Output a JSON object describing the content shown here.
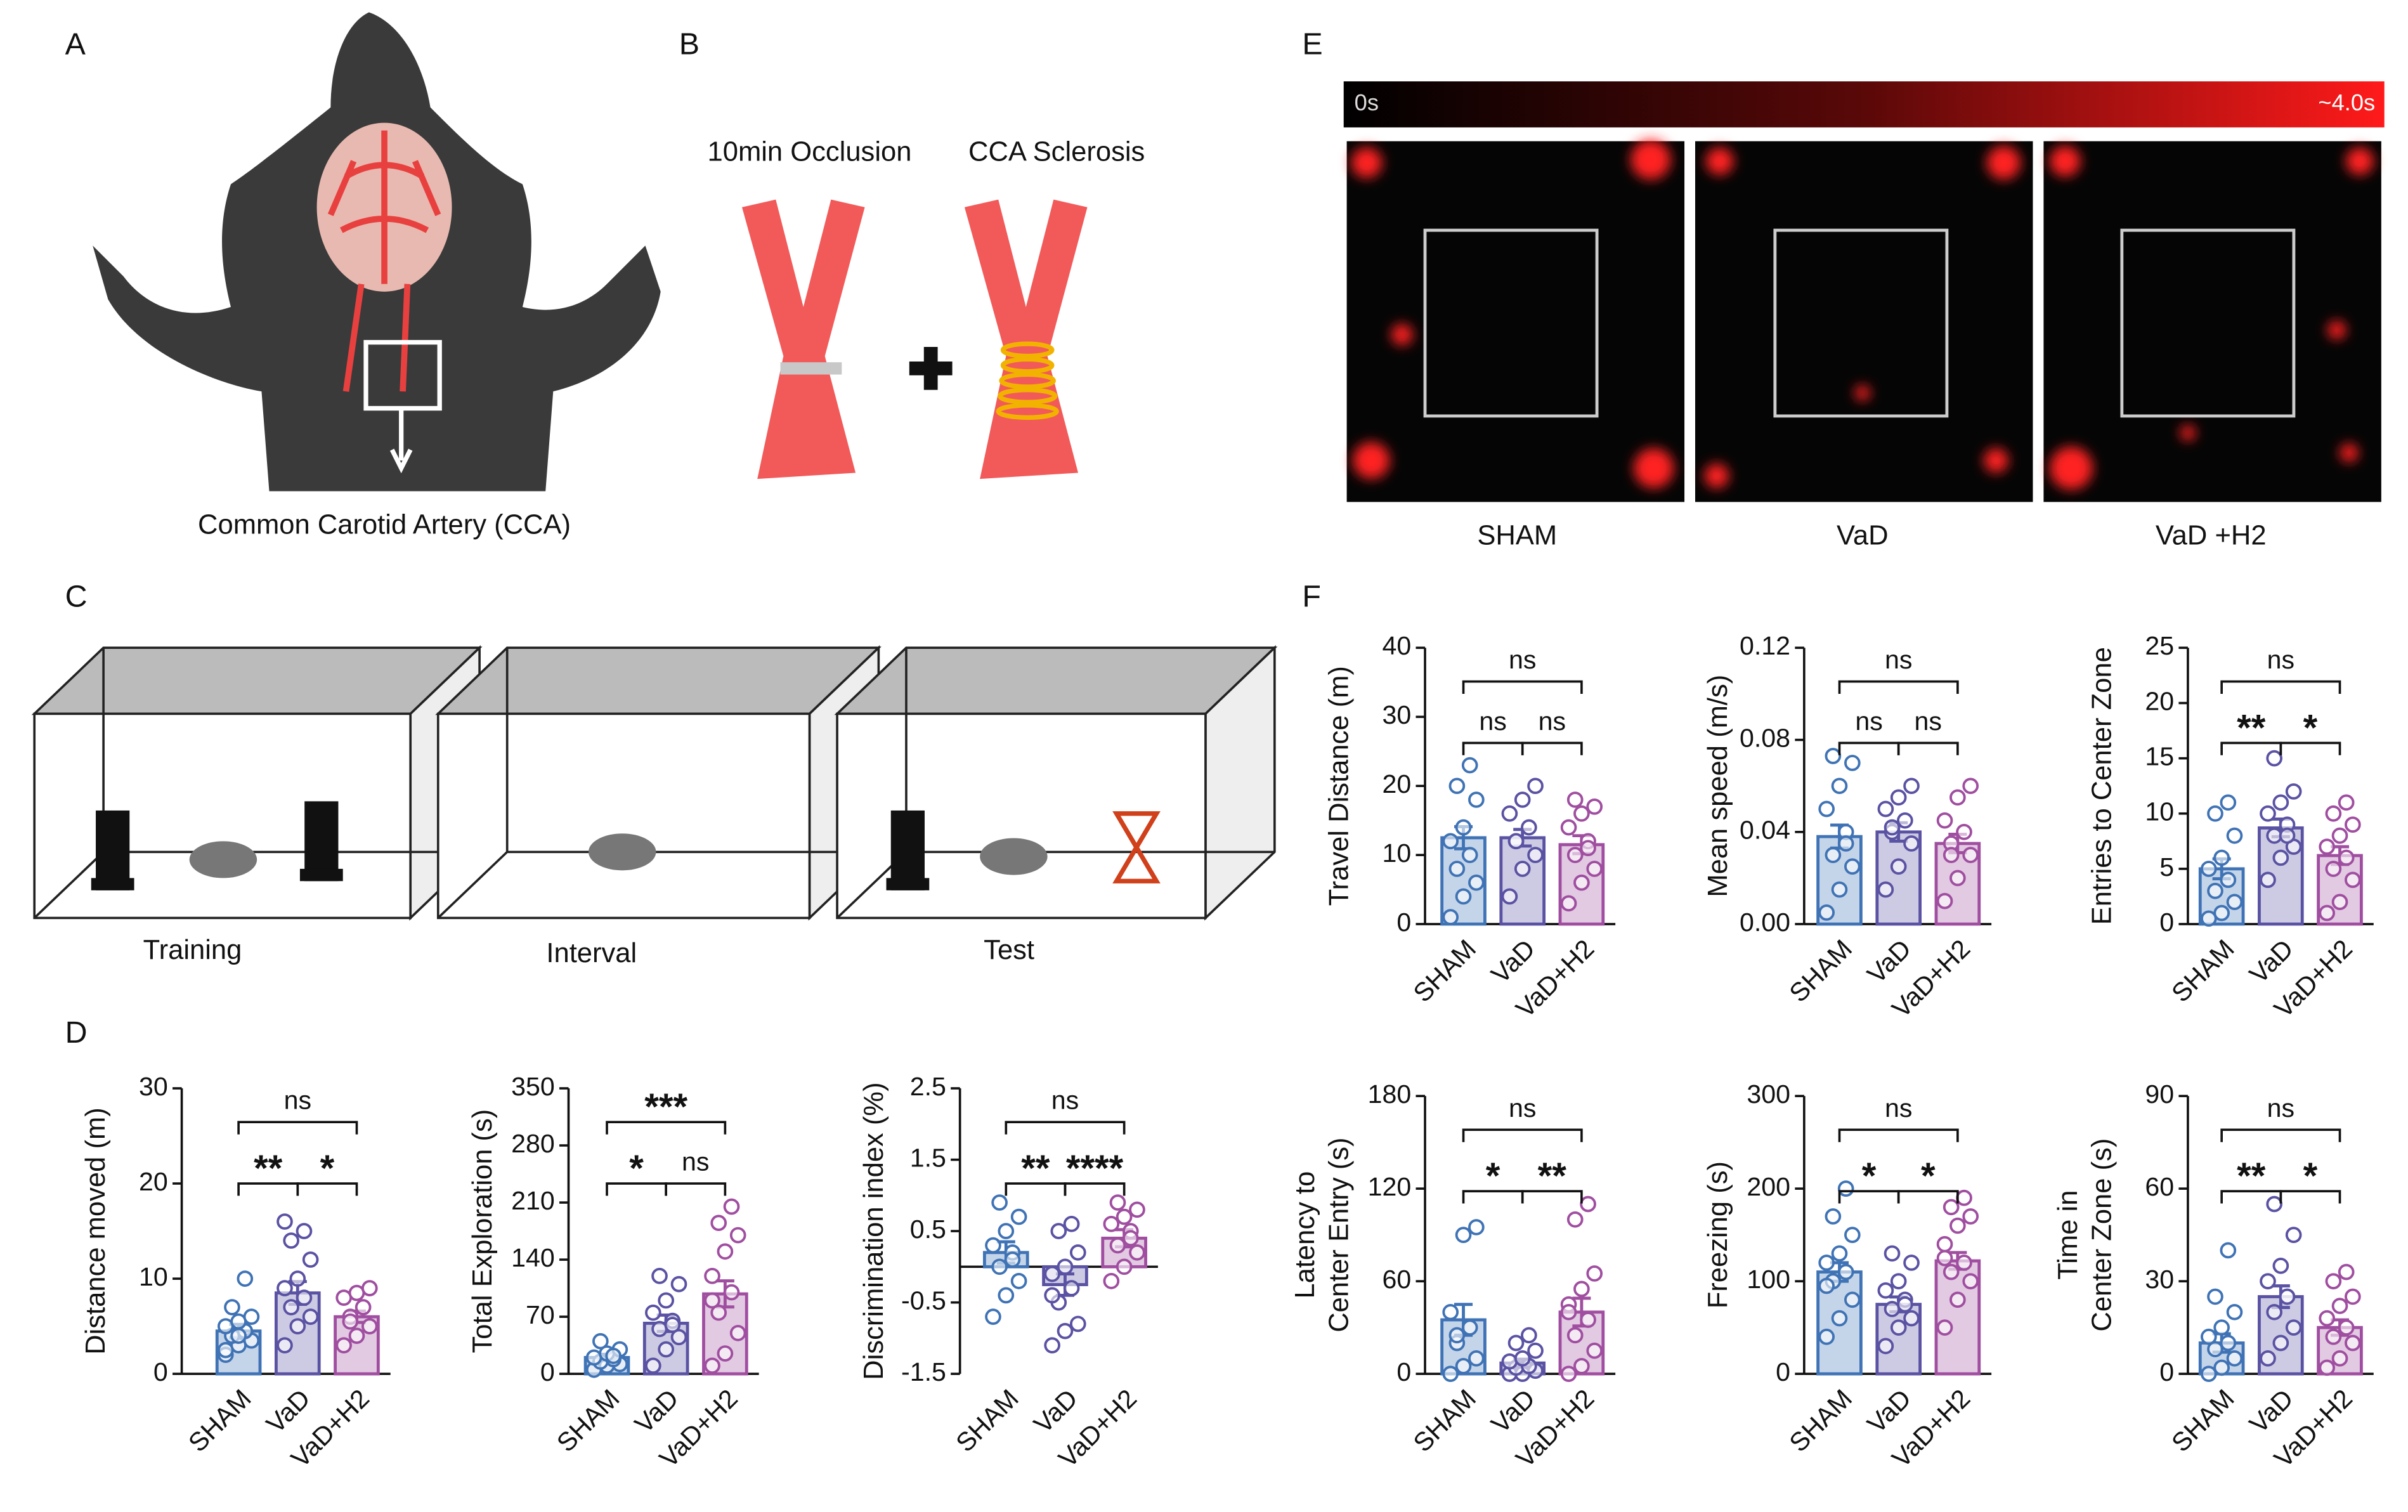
{
  "panels": {
    "A": {
      "letter": "A",
      "caption": "Common Carotid Artery (CCA)"
    },
    "B": {
      "letter": "B",
      "labels": [
        "10min Occlusion",
        "CCA Sclerosis"
      ]
    },
    "C": {
      "letter": "C",
      "labels": [
        "Training",
        "Interval",
        "Test"
      ]
    },
    "D": {
      "letter": "D"
    },
    "E": {
      "letter": "E",
      "scale": [
        "0s",
        "~4.0s"
      ],
      "labels": [
        "SHAM",
        "VaD",
        "VaD +H2"
      ]
    },
    "F": {
      "letter": "F"
    }
  },
  "chart_data": [
    {
      "type": "bar",
      "ylabel": [
        "Distance moved (m)"
      ],
      "categories": [
        "SHAM",
        "VaD",
        "VaD+H2"
      ],
      "colors": [
        "#3f73b5",
        "#5a52a3",
        "#a04ea0"
      ],
      "values": [
        4.5,
        8.5,
        6
      ],
      "errors": [
        0.7,
        1.2,
        0.6
      ],
      "points": [
        [
          2,
          3,
          3.5,
          4,
          4.5,
          5,
          5.5,
          6,
          7,
          10,
          2.5,
          4
        ],
        [
          3,
          5,
          6,
          7,
          8,
          9,
          10,
          12,
          14,
          15,
          16
        ],
        [
          3,
          4,
          5,
          6,
          7,
          8,
          8.5,
          9,
          5.5
        ]
      ],
      "ylim": [
        0,
        30
      ],
      "yticks": [
        0,
        10,
        20,
        30
      ],
      "comparisons": [
        {
          "groups": [
            "SHAM",
            "VaD"
          ],
          "label": "**"
        },
        {
          "groups": [
            "VaD",
            "VaD+H2"
          ],
          "label": "*"
        },
        {
          "groups": [
            "SHAM",
            "VaD+H2"
          ],
          "label": "ns"
        }
      ]
    },
    {
      "type": "bar",
      "ylabel": [
        "Total Exploration (s)"
      ],
      "categories": [
        "SHAM",
        "VaD",
        "VaD+H2"
      ],
      "colors": [
        "#3f73b5",
        "#5a52a3",
        "#a04ea0"
      ],
      "values": [
        20,
        62,
        98
      ],
      "errors": [
        4,
        10,
        16
      ],
      "points": [
        [
          5,
          10,
          12,
          15,
          18,
          20,
          25,
          30,
          40,
          22
        ],
        [
          10,
          30,
          45,
          55,
          65,
          75,
          90,
          110,
          120,
          60
        ],
        [
          10,
          25,
          50,
          75,
          100,
          120,
          150,
          170,
          185,
          205,
          90
        ]
      ],
      "ylim": [
        0,
        350
      ],
      "yticks": [
        0,
        70,
        140,
        210,
        280,
        350
      ],
      "comparisons": [
        {
          "groups": [
            "SHAM",
            "VaD"
          ],
          "label": "*"
        },
        {
          "groups": [
            "VaD",
            "VaD+H2"
          ],
          "label": "ns"
        },
        {
          "groups": [
            "SHAM",
            "VaD+H2"
          ],
          "label": "***"
        }
      ]
    },
    {
      "type": "bar",
      "ylabel": [
        "Discrimination index (%)"
      ],
      "categories": [
        "SHAM",
        "VaD",
        "VaD+H2"
      ],
      "colors": [
        "#3f73b5",
        "#5a52a3",
        "#a04ea0"
      ],
      "values": [
        0.2,
        -0.25,
        0.4
      ],
      "errors": [
        0.15,
        0.15,
        0.12
      ],
      "points": [
        [
          -0.7,
          -0.4,
          -0.2,
          0,
          0.2,
          0.3,
          0.5,
          0.7,
          0.9,
          0.1
        ],
        [
          -1.1,
          -0.9,
          -0.8,
          -0.5,
          -0.3,
          -0.1,
          0,
          0.2,
          0.5,
          0.6,
          -0.4
        ],
        [
          -0.2,
          0,
          0.2,
          0.3,
          0.5,
          0.6,
          0.7,
          0.8,
          0.9,
          0.4
        ]
      ],
      "ylim": [
        -1.5,
        2.5
      ],
      "yticks": [
        -1.5,
        -0.5,
        0.5,
        1.5,
        2.5
      ],
      "comparisons": [
        {
          "groups": [
            "SHAM",
            "VaD"
          ],
          "label": "**"
        },
        {
          "groups": [
            "VaD",
            "VaD+H2"
          ],
          "label": "****"
        },
        {
          "groups": [
            "SHAM",
            "VaD+H2"
          ],
          "label": "ns"
        }
      ]
    },
    {
      "type": "bar",
      "ylabel": [
        "Travel Distance (m)"
      ],
      "categories": [
        "SHAM",
        "VaD",
        "VaD+H2"
      ],
      "colors": [
        "#3f73b5",
        "#5a52a3",
        "#a04ea0"
      ],
      "values": [
        12.5,
        12.5,
        11.5
      ],
      "errors": [
        1.6,
        1.2,
        1.3
      ],
      "points": [
        [
          1,
          4,
          6,
          8,
          10,
          12,
          14,
          18,
          20,
          23
        ],
        [
          4,
          8,
          10,
          12,
          14,
          16,
          18,
          20,
          12
        ],
        [
          3,
          6,
          8,
          10,
          12,
          14,
          16,
          17,
          18,
          11
        ]
      ],
      "ylim": [
        0,
        40
      ],
      "yticks": [
        0,
        10,
        20,
        30,
        40
      ],
      "comparisons": [
        {
          "groups": [
            "SHAM",
            "VaD"
          ],
          "label": "ns"
        },
        {
          "groups": [
            "VaD",
            "VaD+H2"
          ],
          "label": "ns"
        },
        {
          "groups": [
            "SHAM",
            "VaD+H2"
          ],
          "label": "ns"
        }
      ]
    },
    {
      "type": "bar",
      "ylabel": [
        "Mean speed (m/s)"
      ],
      "categories": [
        "SHAM",
        "VaD",
        "VaD+H2"
      ],
      "colors": [
        "#3f73b5",
        "#5a52a3",
        "#a04ea0"
      ],
      "values": [
        0.038,
        0.04,
        0.035
      ],
      "errors": [
        0.005,
        0.004,
        0.004
      ],
      "points": [
        [
          0.005,
          0.015,
          0.025,
          0.03,
          0.04,
          0.05,
          0.06,
          0.07,
          0.073,
          0.035
        ],
        [
          0.015,
          0.025,
          0.035,
          0.04,
          0.045,
          0.05,
          0.055,
          0.06,
          0.042
        ],
        [
          0.01,
          0.02,
          0.03,
          0.035,
          0.04,
          0.045,
          0.055,
          0.06,
          0.03
        ]
      ],
      "ylim": [
        0,
        0.12
      ],
      "yticks": [
        {
          "value": 0,
          "label": "0.00"
        },
        {
          "value": 0.04,
          "label": "0.04"
        },
        {
          "value": 0.08,
          "label": "0.08"
        },
        {
          "value": 0.12,
          "label": "0.12"
        }
      ],
      "comparisons": [
        {
          "groups": [
            "SHAM",
            "VaD"
          ],
          "label": "ns"
        },
        {
          "groups": [
            "VaD",
            "VaD+H2"
          ],
          "label": "ns"
        },
        {
          "groups": [
            "SHAM",
            "VaD+H2"
          ],
          "label": "ns"
        }
      ]
    },
    {
      "type": "bar",
      "ylabel": [
        "Entries to Center Zone"
      ],
      "categories": [
        "SHAM",
        "VaD",
        "VaD+H2"
      ],
      "colors": [
        "#3f73b5",
        "#5a52a3",
        "#a04ea0"
      ],
      "values": [
        5,
        8.7,
        6.2
      ],
      "errors": [
        0.9,
        0.8,
        0.8
      ],
      "points": [
        [
          0.5,
          1,
          2,
          3,
          4,
          5,
          6,
          8,
          10,
          11
        ],
        [
          4,
          6,
          7,
          8,
          9,
          10,
          11,
          12,
          15,
          8
        ],
        [
          1,
          2,
          4,
          5,
          6,
          7,
          8,
          9,
          10,
          11
        ]
      ],
      "ylim": [
        0,
        25
      ],
      "yticks": [
        0,
        5,
        10,
        15,
        20,
        25
      ],
      "comparisons": [
        {
          "groups": [
            "SHAM",
            "VaD"
          ],
          "label": "**"
        },
        {
          "groups": [
            "VaD",
            "VaD+H2"
          ],
          "label": "*"
        },
        {
          "groups": [
            "SHAM",
            "VaD+H2"
          ],
          "label": "ns"
        }
      ]
    },
    {
      "type": "bar",
      "ylabel": [
        "Latency to",
        "Center Entry (s)"
      ],
      "categories": [
        "SHAM",
        "VaD",
        "VaD+H2"
      ],
      "colors": [
        "#3f73b5",
        "#5a52a3",
        "#a04ea0"
      ],
      "values": [
        35,
        7,
        40
      ],
      "errors": [
        10,
        2.5,
        9
      ],
      "points": [
        [
          0,
          5,
          10,
          20,
          30,
          40,
          90,
          95,
          25
        ],
        [
          0,
          0,
          2,
          4,
          5,
          8,
          10,
          15,
          20,
          25
        ],
        [
          0,
          5,
          15,
          25,
          35,
          45,
          55,
          65,
          100,
          110,
          40
        ]
      ],
      "ylim": [
        0,
        180
      ],
      "yticks": [
        0,
        60,
        120,
        180
      ],
      "comparisons": [
        {
          "groups": [
            "SHAM",
            "VaD"
          ],
          "label": "*"
        },
        {
          "groups": [
            "VaD",
            "VaD+H2"
          ],
          "label": "**"
        },
        {
          "groups": [
            "SHAM",
            "VaD+H2"
          ],
          "label": "ns"
        }
      ]
    },
    {
      "type": "bar",
      "ylabel": [
        "Freezing (s)"
      ],
      "categories": [
        "SHAM",
        "VaD",
        "VaD+H2"
      ],
      "colors": [
        "#3f73b5",
        "#5a52a3",
        "#a04ea0"
      ],
      "values": [
        110,
        75,
        122
      ],
      "errors": [
        10,
        8,
        9
      ],
      "points": [
        [
          40,
          60,
          80,
          100,
          110,
          120,
          130,
          150,
          170,
          200,
          95
        ],
        [
          30,
          50,
          60,
          70,
          80,
          90,
          100,
          120,
          130,
          75
        ],
        [
          50,
          80,
          100,
          110,
          120,
          140,
          160,
          170,
          180,
          190,
          125
        ]
      ],
      "ylim": [
        0,
        300
      ],
      "yticks": [
        0,
        100,
        200,
        300
      ],
      "comparisons": [
        {
          "groups": [
            "SHAM",
            "VaD"
          ],
          "label": "*"
        },
        {
          "groups": [
            "VaD",
            "VaD+H2"
          ],
          "label": "*"
        },
        {
          "groups": [
            "SHAM",
            "VaD+H2"
          ],
          "label": "ns"
        }
      ]
    },
    {
      "type": "bar",
      "ylabel": [
        "Time in",
        "Center Zone (s)"
      ],
      "categories": [
        "SHAM",
        "VaD",
        "VaD+H2"
      ],
      "colors": [
        "#3f73b5",
        "#5a52a3",
        "#a04ea0"
      ],
      "values": [
        10,
        25,
        15
      ],
      "errors": [
        3,
        3.5,
        2.5
      ],
      "points": [
        [
          0,
          2,
          5,
          8,
          10,
          12,
          15,
          20,
          25,
          40
        ],
        [
          5,
          10,
          15,
          20,
          25,
          30,
          35,
          45,
          55,
          25
        ],
        [
          2,
          5,
          10,
          12,
          15,
          18,
          22,
          25,
          30,
          33
        ]
      ],
      "ylim": [
        0,
        90
      ],
      "yticks": [
        0,
        30,
        60,
        90
      ],
      "comparisons": [
        {
          "groups": [
            "SHAM",
            "VaD"
          ],
          "label": "**"
        },
        {
          "groups": [
            "VaD",
            "VaD+H2"
          ],
          "label": "*"
        },
        {
          "groups": [
            "SHAM",
            "VaD+H2"
          ],
          "label": "ns"
        }
      ]
    }
  ]
}
